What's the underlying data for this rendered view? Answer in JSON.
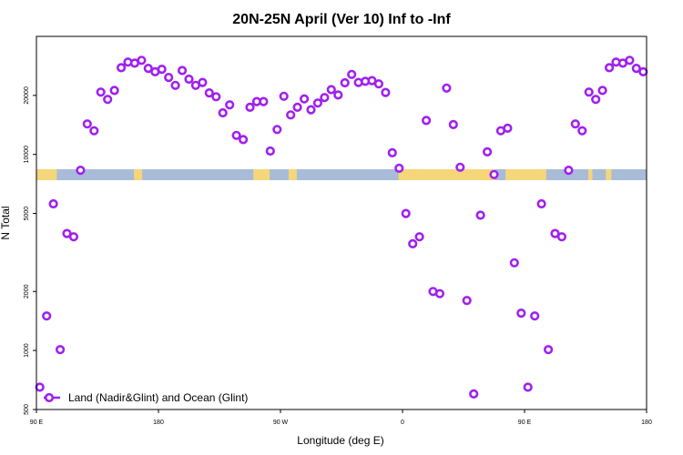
{
  "chart_data": {
    "type": "scatter",
    "title": "20N-25N April (Ver 10)   Inf to -Inf",
    "xlabel": "Longitude (deg E)",
    "ylabel": "N Total",
    "x_tick_labels": [
      "90 E",
      "180",
      "90 W",
      "0",
      "90 E",
      "180"
    ],
    "x_tick_values": [
      90,
      180,
      270,
      360,
      450,
      540
    ],
    "xlim": [
      90,
      540
    ],
    "y_scale": "log",
    "y_tick_labels": [
      "500",
      "1000",
      "2000",
      "5000",
      "10000",
      "20000"
    ],
    "y_tick_values": [
      500,
      1000,
      2000,
      5000,
      10000,
      20000
    ],
    "ylim": [
      500,
      40000
    ],
    "grid": false,
    "legend_position": "bottom-left",
    "colors": {
      "series": "#a020f0",
      "ocean": "#a8bcd8",
      "land": "#f5d67a"
    },
    "series": [
      {
        "name": "Land (Nadir&Glint) and Ocean (Glint)",
        "color": "#a020f0",
        "x": [
          92.5,
          97.5,
          102.5,
          107.5,
          112.5,
          117.5,
          122.5,
          127.5,
          132.5,
          137.5,
          142.5,
          147.5,
          152.5,
          157.5,
          162.5,
          167.5,
          172.5,
          177.5,
          182.5,
          187.5,
          192.5,
          197.5,
          202.5,
          207.5,
          212.5,
          217.5,
          222.5,
          227.5,
          232.5,
          237.5,
          242.5,
          247.5,
          252.5,
          257.5,
          262.5,
          267.5,
          272.5,
          277.5,
          282.5,
          287.5,
          292.5,
          297.5,
          302.5,
          307.5,
          312.5,
          317.5,
          322.5,
          327.5,
          332.5,
          337.5,
          342.5,
          347.5,
          352.5,
          357.5,
          362.5,
          367.5,
          372.5,
          377.5,
          382.5,
          387.5,
          392.5,
          397.5,
          402.5,
          407.5,
          412.5,
          417.5,
          422.5,
          427.5,
          432.5,
          437.5,
          442.5,
          447.5,
          452.5,
          457.5,
          462.5,
          467.5,
          472.5,
          477.5,
          482.5,
          487.5,
          492.5,
          497.5,
          502.5,
          507.5,
          512.5,
          517.5,
          522.5,
          527.5,
          532.5,
          537.5
        ],
        "values": [
          650,
          1500,
          5600,
          1010,
          3950,
          3800,
          8300,
          14300,
          13200,
          20800,
          19100,
          21200,
          27700,
          29600,
          29200,
          30200,
          27500,
          26400,
          27200,
          24700,
          22500,
          26800,
          24200,
          22500,
          23300,
          20600,
          19700,
          16300,
          17900,
          12500,
          11900,
          17400,
          18600,
          18600,
          10400,
          13400,
          19800,
          15900,
          17400,
          19200,
          16900,
          18300,
          19500,
          21400,
          20100,
          23200,
          25600,
          23300,
          23600,
          23800,
          22900,
          20700,
          10200,
          8500,
          5000,
          3500,
          3800,
          14900,
          2000,
          1950,
          21800,
          14200,
          8600,
          1800,
          600,
          4900,
          10300,
          7900,
          13200,
          13600,
          2800,
          1550,
          650,
          1500,
          5600,
          1010,
          3950,
          3800,
          8300,
          14300,
          13200,
          20800,
          19100,
          21200,
          27700,
          29600,
          29200,
          30200,
          27500,
          26400
        ]
      }
    ]
  }
}
